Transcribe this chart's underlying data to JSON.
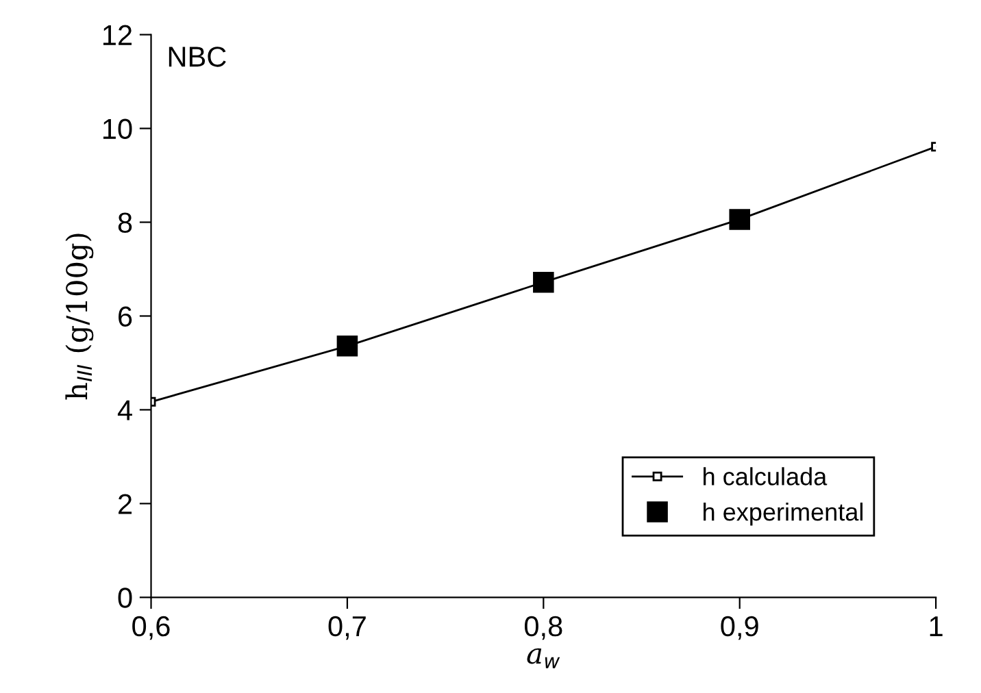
{
  "chart_data": {
    "type": "line",
    "xlabel": "a$_{w}$",
    "ylabel": "h$_{III}$ (g/100g)",
    "annotations": [
      "NBC"
    ],
    "x": [
      0.6,
      0.7,
      0.8,
      0.9,
      1.0
    ],
    "series": [
      {
        "name": "h calculada",
        "color": "#000000",
        "marker": "square",
        "values": [
          4.17,
          5.36,
          6.72,
          8.06,
          9.61
        ]
      },
      {
        "name": "h experimental",
        "type": "scatter",
        "color": "#000000",
        "marker": "square",
        "x": [
          0.7,
          0.8,
          0.9
        ],
        "values": [
          5.36,
          6.72,
          8.06
        ]
      }
    ],
    "xlim": [
      0.6,
      1.0
    ],
    "xticks": [
      {
        "value": 0.6,
        "label": "0,6"
      },
      {
        "value": 0.7,
        "label": "0,7"
      },
      {
        "value": 0.8,
        "label": "0,8"
      },
      {
        "value": 0.9,
        "label": "0,9"
      },
      {
        "value": 1.0,
        "label": "1"
      }
    ],
    "ylim": [
      0,
      12
    ],
    "yticks": [
      0,
      2,
      4,
      6,
      8,
      10,
      12
    ],
    "grid": false,
    "legend": "bottom right"
  }
}
